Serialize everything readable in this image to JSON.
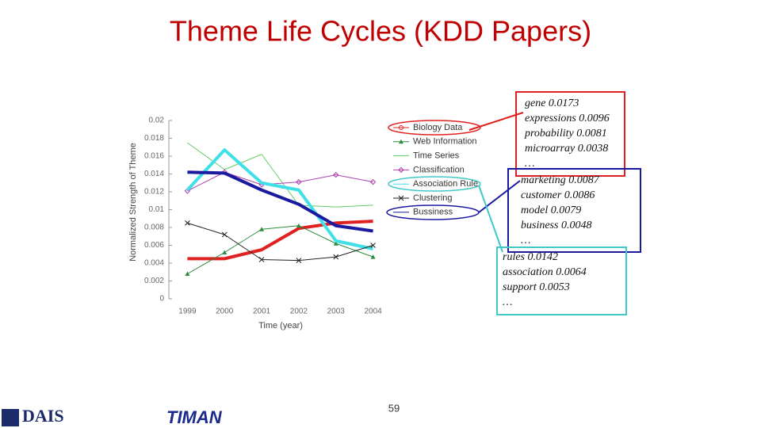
{
  "title": "Theme Life Cycles (KDD Papers)",
  "page_number": "59",
  "logos": [
    "DAIS",
    "TIMAN"
  ],
  "annotations": [
    {
      "color": "#e02020",
      "lines": [
        "gene  0.0173",
        "expressions  0.0096",
        "probability 0.0081",
        "microarray 0.0038",
        "…"
      ]
    },
    {
      "color": "#1a1aa0",
      "lines": [
        "marketing  0.0087",
        "customer  0.0086",
        "model 0.0079",
        "business 0.0048",
        "…"
      ]
    },
    {
      "color": "#40c8c8",
      "lines": [
        "rules  0.0142",
        "association  0.0064",
        "support 0.0053",
        "…"
      ]
    }
  ],
  "chart_data": {
    "type": "line",
    "xlabel": "Time (year)",
    "ylabel": "Normalized Strength of Theme",
    "categories": [
      "1999",
      "2000",
      "2001",
      "2002",
      "2003",
      "2004"
    ],
    "ylim": [
      0,
      0.02
    ],
    "yticks": [
      0,
      0.002,
      0.004,
      0.006,
      0.008,
      0.01,
      0.012,
      0.014,
      0.016,
      0.018,
      0.02
    ],
    "series": [
      {
        "name": "Biology Data",
        "color": "#e02020",
        "marker": "circle",
        "values": [
          0.0045,
          0.0045,
          0.0055,
          0.0079,
          0.0085,
          0.0087
        ]
      },
      {
        "name": "Web Information",
        "color": "#2e8b3e",
        "marker": "triangle",
        "values": [
          0.0028,
          0.0052,
          0.0078,
          0.0082,
          0.0062,
          0.0047
        ]
      },
      {
        "name": "Time Series",
        "color": "#66cc66",
        "marker": "none",
        "values": [
          0.0175,
          0.0145,
          0.0162,
          0.0105,
          0.0103,
          0.0105
        ]
      },
      {
        "name": "Classification",
        "color": "#b040b0",
        "marker": "diamond",
        "values": [
          0.0121,
          0.0142,
          0.0128,
          0.0131,
          0.0139,
          0.0131
        ]
      },
      {
        "name": "Association Rule",
        "color": "#40e0e8",
        "marker": "none",
        "values": [
          0.0122,
          0.0167,
          0.013,
          0.0122,
          0.0065,
          0.0056
        ]
      },
      {
        "name": "Clustering",
        "color": "#222222",
        "marker": "x",
        "values": [
          0.0085,
          0.0072,
          0.0044,
          0.0043,
          0.0047,
          0.006
        ]
      },
      {
        "name": "Bussiness",
        "color": "#1a1aa0",
        "marker": "none",
        "values": [
          0.0142,
          0.0141,
          0.0122,
          0.0106,
          0.0082,
          0.0076
        ]
      }
    ]
  }
}
